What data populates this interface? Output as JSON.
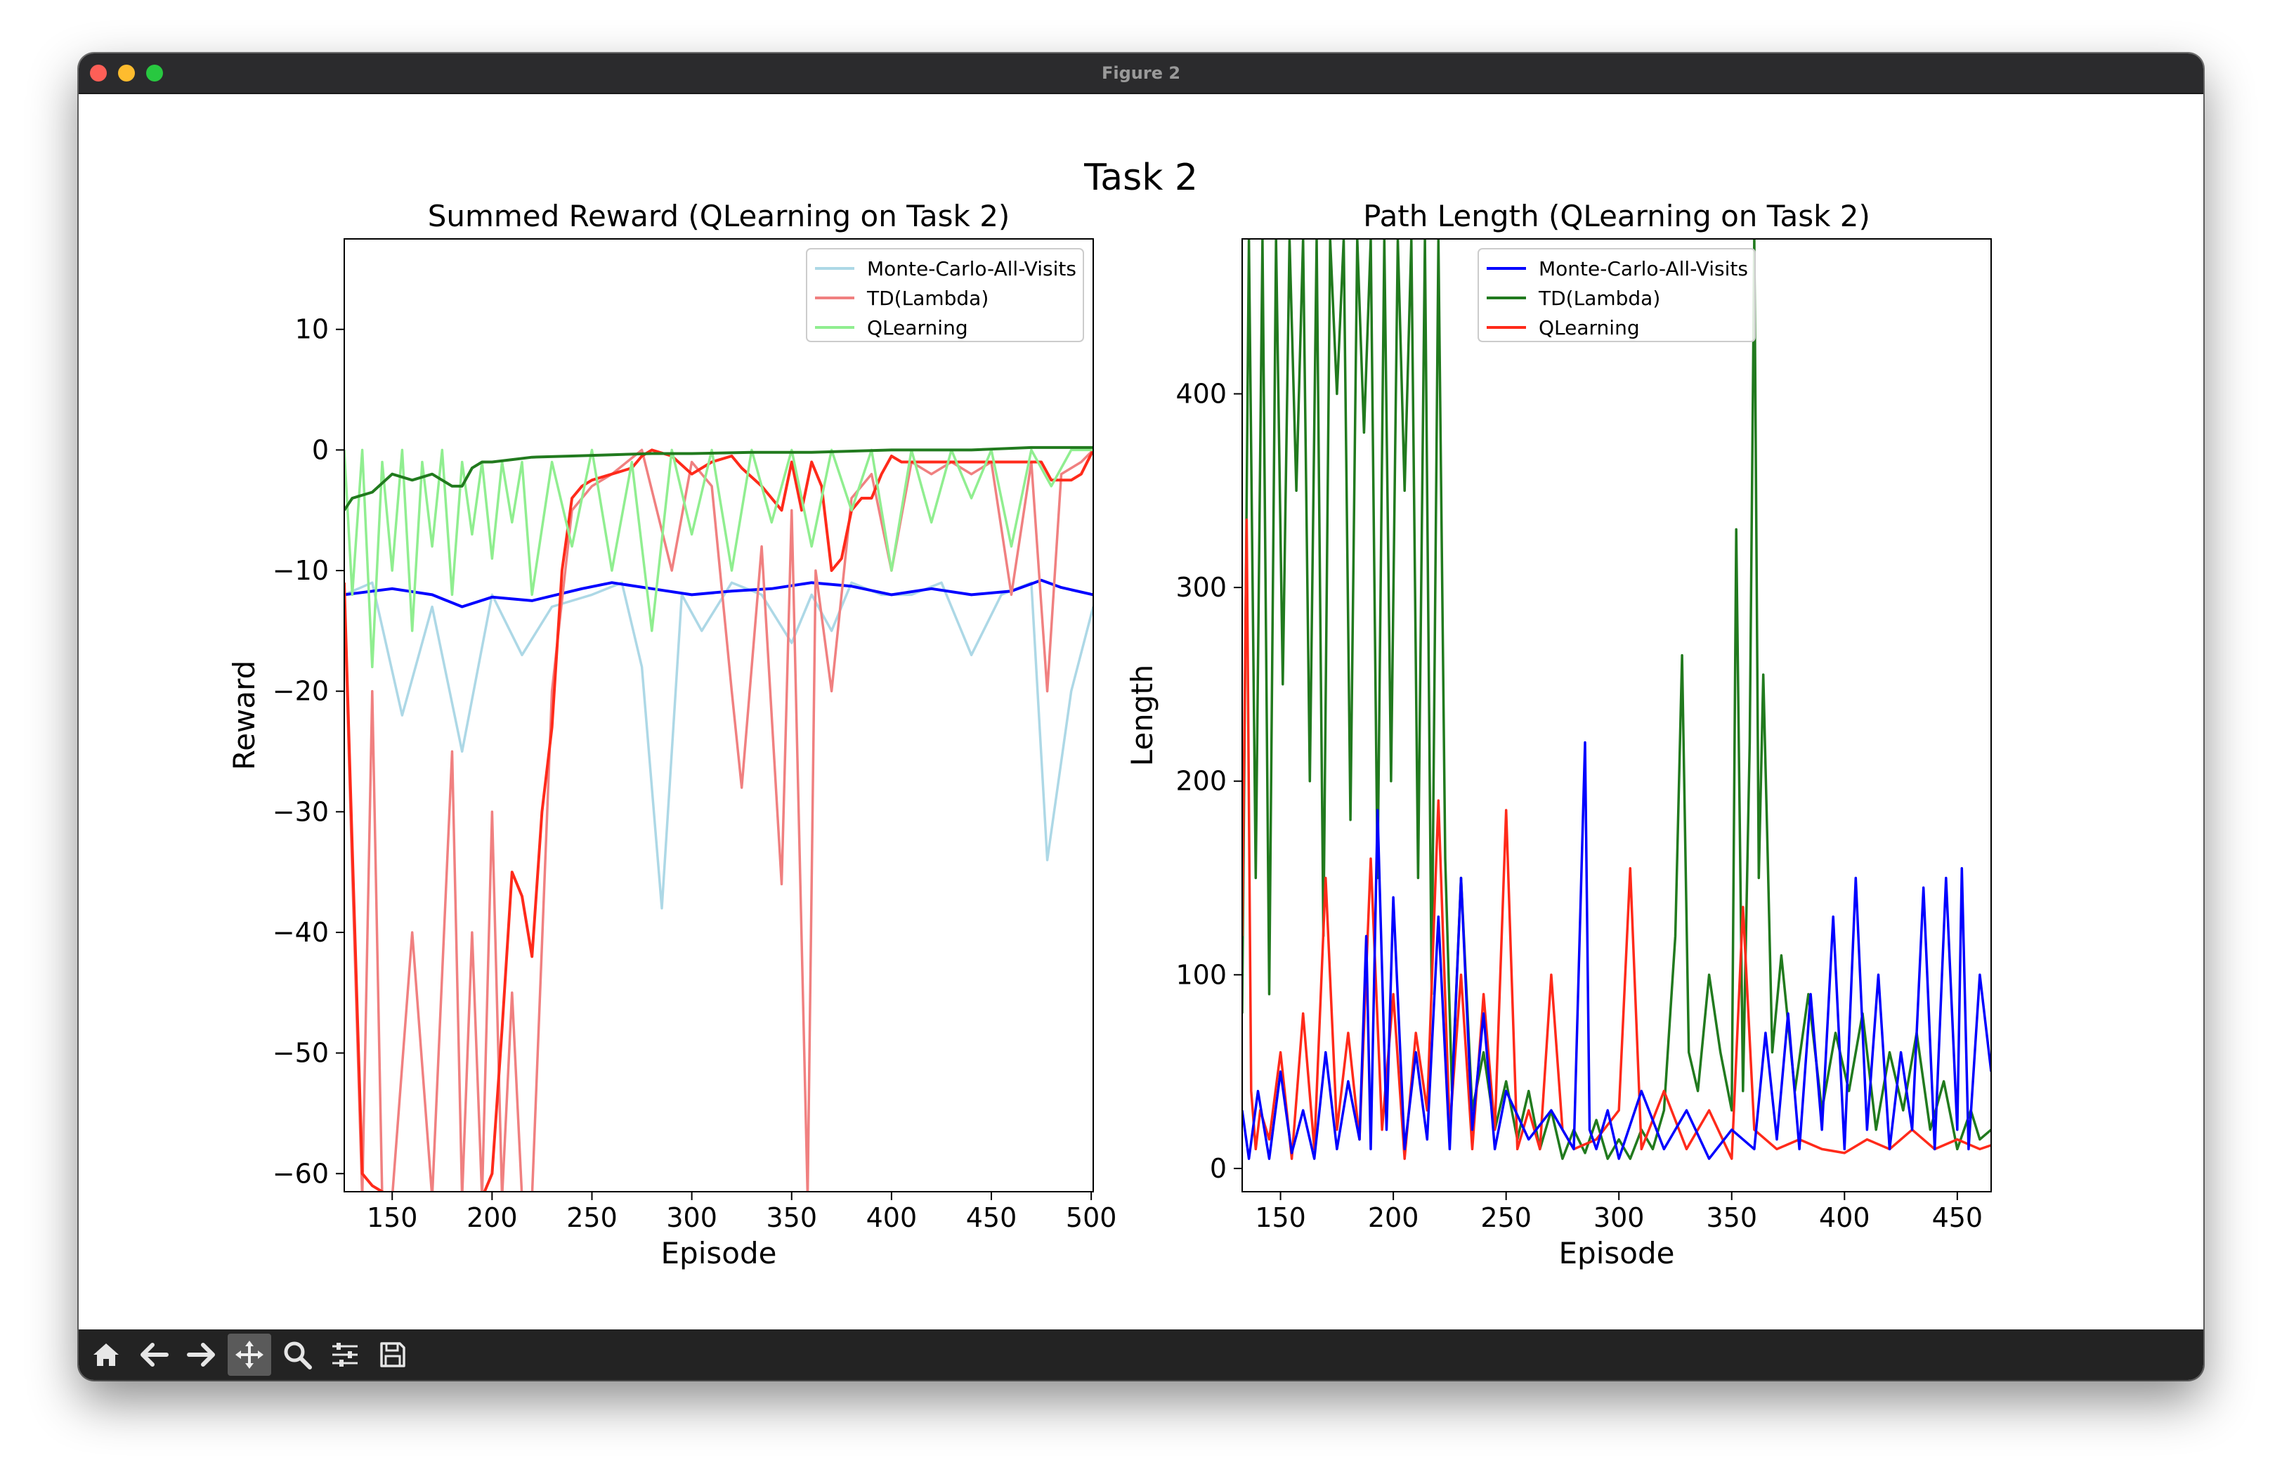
{
  "window": {
    "title": "Figure 2",
    "controls": [
      "close",
      "minimize",
      "maximize"
    ]
  },
  "figure": {
    "suptitle": "Task 2"
  },
  "toolbar": {
    "tools": [
      {
        "name": "home-icon",
        "label": "Home"
      },
      {
        "name": "back-icon",
        "label": "Back"
      },
      {
        "name": "forward-icon",
        "label": "Forward"
      },
      {
        "name": "pan-icon",
        "label": "Pan",
        "active": true
      },
      {
        "name": "zoom-icon",
        "label": "Zoom"
      },
      {
        "name": "configure-subplots-icon",
        "label": "Subplots"
      },
      {
        "name": "save-icon",
        "label": "Save"
      }
    ]
  },
  "chart_data": [
    {
      "type": "line",
      "title": "Summed Reward (QLearning on Task 2)",
      "xlabel": "Episode",
      "ylabel": "Reward",
      "xlim": [
        126,
        501
      ],
      "ylim": [
        -61.5,
        17.5
      ],
      "xticks": [
        150,
        200,
        250,
        300,
        350,
        400,
        450,
        500
      ],
      "yticks": [
        10,
        0,
        -10,
        -20,
        -30,
        -40,
        -50,
        -60
      ],
      "ytick_labels": [
        "10",
        "0",
        "−10",
        "−20",
        "−30",
        "−40",
        "−50",
        "−60"
      ],
      "grid": false,
      "legend_position": "top-right",
      "legend": [
        {
          "label": "Monte-Carlo-All-Visits",
          "color": "#add8e6"
        },
        {
          "label": "TD(Lambda)",
          "color": "#f08080"
        },
        {
          "label": "QLearning",
          "color": "#90ee90"
        }
      ],
      "series": [
        {
          "name": "Monte-Carlo-All-Visits",
          "color": "#add8e6",
          "kind": "raw",
          "x": [
            126,
            140,
            155,
            170,
            185,
            200,
            215,
            230,
            250,
            265,
            275,
            285,
            295,
            305,
            320,
            335,
            350,
            360,
            370,
            380,
            395,
            410,
            425,
            440,
            455,
            470,
            478,
            490,
            501
          ],
          "y": [
            -12,
            -11,
            -22,
            -13,
            -25,
            -12,
            -17,
            -13,
            -12,
            -11,
            -18,
            -38,
            -12,
            -15,
            -11,
            -12,
            -16,
            -12,
            -15,
            -11,
            -12,
            -12,
            -11,
            -17,
            -12,
            -11,
            -34,
            -20,
            -13
          ]
        },
        {
          "name": "Monte-Carlo-All-Visits (smoothed)",
          "color": "#0000ff",
          "kind": "smoothed",
          "x": [
            126,
            150,
            170,
            185,
            200,
            220,
            245,
            260,
            280,
            300,
            320,
            340,
            360,
            380,
            400,
            420,
            440,
            460,
            475,
            485,
            501
          ],
          "y": [
            -12,
            -11.5,
            -12,
            -13,
            -12.2,
            -12.5,
            -11.5,
            -11,
            -11.5,
            -12,
            -11.7,
            -11.5,
            -11,
            -11.3,
            -12,
            -11.5,
            -12,
            -11.7,
            -10.8,
            -11.4,
            -12
          ]
        },
        {
          "name": "TD(Lambda)",
          "color": "#f08080",
          "kind": "raw",
          "x": [
            126,
            130,
            135,
            140,
            145,
            150,
            160,
            170,
            180,
            185,
            190,
            195,
            200,
            205,
            210,
            215,
            220,
            230,
            240,
            250,
            260,
            275,
            290,
            300,
            310,
            320,
            325,
            335,
            345,
            350,
            358,
            362,
            370,
            380,
            390,
            400,
            410,
            420,
            430,
            440,
            450,
            460,
            470,
            478,
            485,
            495,
            501
          ],
          "y": [
            -12,
            -35,
            -62,
            -20,
            -62,
            -62,
            -40,
            -62,
            -25,
            -62,
            -40,
            -62,
            -30,
            -62,
            -45,
            -62,
            -62,
            -20,
            -5,
            -3,
            -2,
            0,
            -10,
            -1,
            -3,
            -20,
            -28,
            -8,
            -36,
            -5,
            -62,
            -10,
            -20,
            -4,
            -2,
            -10,
            -1,
            -2,
            -1,
            -2,
            -1,
            -12,
            -1,
            -20,
            -2,
            -1,
            0
          ]
        },
        {
          "name": "TD(Lambda) (smoothed)",
          "color": "#ff2a1a",
          "kind": "smoothed",
          "x": [
            126,
            130,
            135,
            140,
            150,
            160,
            170,
            180,
            190,
            195,
            200,
            205,
            210,
            215,
            220,
            225,
            230,
            235,
            240,
            245,
            250,
            260,
            270,
            275,
            280,
            290,
            300,
            310,
            320,
            325,
            335,
            345,
            350,
            355,
            360,
            365,
            370,
            375,
            380,
            385,
            390,
            395,
            400,
            405,
            410,
            420,
            435,
            450,
            465,
            475,
            480,
            490,
            495,
            501
          ],
          "y": [
            -11,
            -33,
            -60,
            -61,
            -62,
            -62,
            -62,
            -62,
            -62,
            -62,
            -60,
            -48,
            -35,
            -37,
            -42,
            -30,
            -23,
            -10,
            -4,
            -3,
            -2.5,
            -2,
            -1.5,
            -0.5,
            0,
            -0.5,
            -2,
            -1,
            -0.5,
            -1.5,
            -3,
            -5,
            -1,
            -5,
            -1,
            -3,
            -10,
            -9,
            -5,
            -4,
            -4,
            -2,
            -0.5,
            -1,
            -1,
            -1,
            -1,
            -1,
            -1,
            -1,
            -2.5,
            -2.5,
            -2,
            0
          ]
        },
        {
          "name": "QLearning",
          "color": "#90ee90",
          "kind": "raw",
          "x": [
            126,
            130,
            135,
            140,
            145,
            150,
            155,
            160,
            165,
            170,
            175,
            180,
            185,
            190,
            195,
            200,
            205,
            210,
            215,
            220,
            230,
            240,
            250,
            260,
            270,
            280,
            290,
            300,
            310,
            320,
            330,
            340,
            350,
            360,
            370,
            380,
            390,
            400,
            410,
            420,
            430,
            440,
            450,
            460,
            470,
            480,
            490,
            501
          ],
          "y": [
            0,
            -12,
            0,
            -18,
            -1,
            -10,
            0,
            -15,
            -1,
            -8,
            0,
            -12,
            -1,
            -7,
            -1,
            -9,
            -1,
            -6,
            -1,
            -12,
            -1,
            -8,
            0,
            -10,
            -1,
            -15,
            0,
            -7,
            0,
            -10,
            0,
            -6,
            0,
            -8,
            0,
            -5,
            0,
            -10,
            0,
            -6,
            0,
            -4,
            0,
            -8,
            0,
            -3,
            0,
            0
          ]
        },
        {
          "name": "QLearning (smoothed)",
          "color": "#217a1e",
          "kind": "smoothed",
          "x": [
            126,
            130,
            140,
            150,
            160,
            170,
            175,
            180,
            185,
            190,
            195,
            200,
            210,
            220,
            240,
            260,
            280,
            300,
            330,
            360,
            400,
            440,
            470,
            501
          ],
          "y": [
            -5,
            -4,
            -3.5,
            -2,
            -2.5,
            -2,
            -2.5,
            -3,
            -3,
            -1.5,
            -1,
            -1,
            -0.8,
            -0.6,
            -0.5,
            -0.4,
            -0.3,
            -0.3,
            -0.2,
            -0.2,
            0,
            0,
            0.2,
            0.2
          ]
        }
      ]
    },
    {
      "type": "line",
      "title": "Path Length (QLearning on Task 2)",
      "xlabel": "Episode",
      "ylabel": "Length",
      "xlim": [
        133,
        465
      ],
      "ylim": [
        -12,
        480
      ],
      "xticks": [
        150,
        200,
        250,
        300,
        350,
        400,
        450
      ],
      "yticks": [
        0,
        100,
        200,
        300,
        400
      ],
      "grid": false,
      "legend_position": "top-center",
      "legend": [
        {
          "label": "Monte-Carlo-All-Visits",
          "color": "#0000ff"
        },
        {
          "label": "TD(Lambda)",
          "color": "#217a1e"
        },
        {
          "label": "QLearning",
          "color": "#ff2a1a"
        }
      ],
      "series": [
        {
          "name": "TD(Lambda)",
          "color": "#217a1e",
          "x": [
            133,
            136,
            139,
            142,
            145,
            148,
            151,
            154,
            157,
            160,
            163,
            166,
            169,
            172,
            175,
            178,
            181,
            184,
            187,
            190,
            193,
            196,
            199,
            202,
            205,
            208,
            211,
            214,
            217,
            220,
            223,
            226,
            230,
            235,
            240,
            245,
            250,
            255,
            260,
            265,
            270,
            275,
            280,
            285,
            290,
            295,
            300,
            305,
            310,
            315,
            320,
            325,
            328,
            331,
            335,
            340,
            345,
            350,
            352,
            355,
            358,
            360,
            362,
            364,
            366,
            368,
            372,
            378,
            384,
            390,
            396,
            402,
            408,
            414,
            420,
            426,
            432,
            438,
            444,
            450,
            456,
            460,
            465
          ],
          "y": [
            80,
            480,
            150,
            480,
            90,
            480,
            250,
            480,
            350,
            480,
            200,
            480,
            120,
            480,
            400,
            480,
            180,
            480,
            380,
            480,
            150,
            480,
            200,
            480,
            350,
            480,
            150,
            480,
            90,
            480,
            160,
            40,
            150,
            30,
            60,
            20,
            45,
            15,
            40,
            10,
            30,
            5,
            20,
            8,
            25,
            5,
            15,
            5,
            20,
            10,
            30,
            120,
            265,
            60,
            40,
            100,
            60,
            30,
            330,
            40,
            220,
            480,
            150,
            255,
            160,
            60,
            110,
            40,
            90,
            30,
            70,
            40,
            80,
            20,
            60,
            30,
            70,
            20,
            45,
            10,
            30,
            15,
            20
          ]
        },
        {
          "name": "QLearning",
          "color": "#ff2a1a",
          "x": [
            133,
            135,
            137,
            139,
            141,
            145,
            150,
            155,
            160,
            165,
            170,
            175,
            180,
            185,
            190,
            195,
            200,
            205,
            210,
            215,
            220,
            225,
            230,
            235,
            240,
            245,
            250,
            255,
            260,
            265,
            270,
            275,
            280,
            290,
            300,
            305,
            310,
            320,
            330,
            340,
            350,
            355,
            360,
            370,
            380,
            390,
            400,
            410,
            420,
            430,
            440,
            450,
            460,
            465
          ],
          "y": [
            120,
            335,
            40,
            10,
            30,
            15,
            60,
            5,
            80,
            10,
            150,
            20,
            70,
            15,
            160,
            20,
            90,
            5,
            70,
            30,
            190,
            20,
            100,
            10,
            90,
            20,
            185,
            10,
            30,
            10,
            100,
            20,
            10,
            15,
            30,
            155,
            10,
            40,
            10,
            30,
            5,
            135,
            20,
            10,
            15,
            10,
            8,
            15,
            10,
            20,
            10,
            15,
            10,
            12
          ]
        },
        {
          "name": "Monte-Carlo-All-Visits",
          "color": "#0000ff",
          "x": [
            133,
            136,
            140,
            145,
            150,
            155,
            160,
            165,
            170,
            175,
            180,
            185,
            188,
            190,
            193,
            197,
            200,
            205,
            210,
            215,
            220,
            225,
            230,
            235,
            240,
            245,
            250,
            260,
            270,
            280,
            285,
            287,
            290,
            295,
            300,
            310,
            320,
            330,
            340,
            350,
            360,
            365,
            370,
            375,
            380,
            385,
            390,
            395,
            400,
            405,
            410,
            415,
            420,
            425,
            430,
            435,
            440,
            445,
            450,
            452,
            455,
            460,
            465
          ],
          "y": [
            30,
            5,
            40,
            5,
            50,
            8,
            30,
            5,
            60,
            10,
            45,
            15,
            120,
            10,
            185,
            20,
            140,
            10,
            60,
            15,
            130,
            10,
            150,
            20,
            80,
            10,
            40,
            15,
            30,
            10,
            220,
            20,
            10,
            30,
            5,
            40,
            10,
            30,
            5,
            20,
            10,
            70,
            15,
            80,
            10,
            90,
            20,
            130,
            10,
            150,
            20,
            100,
            10,
            60,
            20,
            145,
            10,
            150,
            20,
            155,
            10,
            100,
            50
          ]
        }
      ]
    }
  ]
}
